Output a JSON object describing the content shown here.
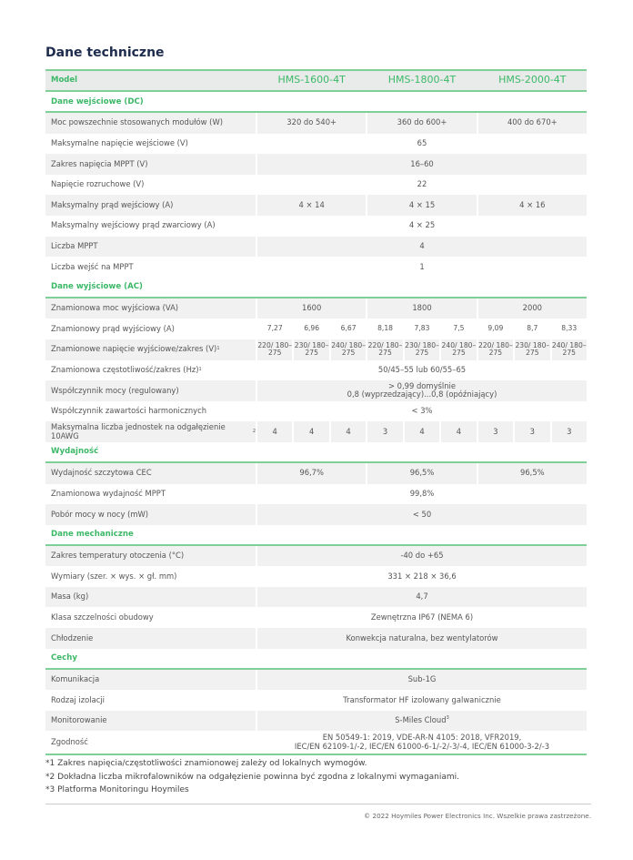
{
  "title": "Dane techniczne",
  "header": {
    "label": "Model",
    "models": [
      "HMS-1600-4T",
      "HMS-1800-4T",
      "HMS-2000-4T"
    ]
  },
  "accent_color": "#3cb868",
  "sections": [
    {
      "title": "Dane wejściowe (DC)",
      "rows": [
        {
          "label": "Moc powszechnie stosowanych modułów (W)",
          "cells": [
            {
              "v": "320 do 540+",
              "span": 3
            },
            {
              "v": "360 do 600+",
              "span": 3
            },
            {
              "v": "400 do 670+",
              "span": 3
            }
          ]
        },
        {
          "label": "Maksymalne napięcie wejściowe (V)",
          "cells": [
            {
              "v": "65",
              "span": 9
            }
          ]
        },
        {
          "label": "Zakres napięcia MPPT (V)",
          "cells": [
            {
              "v": "16–60",
              "span": 9
            }
          ]
        },
        {
          "label": "Napięcie rozruchowe (V)",
          "cells": [
            {
              "v": "22",
              "span": 9
            }
          ]
        },
        {
          "label": "Maksymalny prąd wejściowy (A)",
          "cells": [
            {
              "v": "4 × 14",
              "span": 3
            },
            {
              "v": "4 × 15",
              "span": 3
            },
            {
              "v": "4 × 16",
              "span": 3
            }
          ]
        },
        {
          "label": "Maksymalny wejściowy prąd zwarciowy (A)",
          "cells": [
            {
              "v": "4 × 25",
              "span": 9
            }
          ]
        },
        {
          "label": "Liczba MPPT",
          "cells": [
            {
              "v": "4",
              "span": 9
            }
          ]
        },
        {
          "label": "Liczba wejść na MPPT",
          "cells": [
            {
              "v": "1",
              "span": 9
            }
          ]
        }
      ]
    },
    {
      "title": "Dane wyjściowe (AC)",
      "rows": [
        {
          "label": "Znamionowa moc wyjściowa (VA)",
          "cells": [
            {
              "v": "1600",
              "span": 3
            },
            {
              "v": "1800",
              "span": 3
            },
            {
              "v": "2000",
              "span": 3
            }
          ]
        },
        {
          "label": "Znamionowy prąd wyjściowy (A)",
          "small": true,
          "cells": [
            {
              "v": "7,27",
              "span": 1
            },
            {
              "v": "6,96",
              "span": 1
            },
            {
              "v": "6,67",
              "span": 1
            },
            {
              "v": "8,18",
              "span": 1
            },
            {
              "v": "7,83",
              "span": 1
            },
            {
              "v": "7,5",
              "span": 1
            },
            {
              "v": "9,09",
              "span": 1
            },
            {
              "v": "8,7",
              "span": 1
            },
            {
              "v": "8,33",
              "span": 1
            }
          ]
        },
        {
          "label": "Znamionowe napięcie wyjściowe/zakres (V)",
          "sup": "1",
          "small": true,
          "cells": [
            {
              "v": "220/ 180–275",
              "span": 1
            },
            {
              "v": "230/ 180–275",
              "span": 1
            },
            {
              "v": "240/ 180–275",
              "span": 1
            },
            {
              "v": "220/ 180–275",
              "span": 1
            },
            {
              "v": "230/ 180–275",
              "span": 1
            },
            {
              "v": "240/ 180–275",
              "span": 1
            },
            {
              "v": "220/ 180–275",
              "span": 1
            },
            {
              "v": "230/ 180–275",
              "span": 1
            },
            {
              "v": "240/ 180–275",
              "span": 1
            }
          ]
        },
        {
          "label": "Znamionowa częstotliwość/zakres (Hz)",
          "sup": "1",
          "cells": [
            {
              "v": "50/45–55 lub 60/55–65",
              "span": 9
            }
          ]
        },
        {
          "label": "Współczynnik mocy (regulowany)",
          "cells": [
            {
              "v": "> 0,99 domyślnie",
              "v2": "0,8 (wyprzedzający)...0,8 (opóźniający)",
              "span": 9
            }
          ]
        },
        {
          "label": "Współczynnik zawartości harmonicznych",
          "cells": [
            {
              "v": "< 3%",
              "span": 9
            }
          ]
        },
        {
          "label": "Maksymalna liczba jednostek na odgałęzienie 10AWG",
          "sup": "2",
          "cells": [
            {
              "v": "4",
              "span": 1
            },
            {
              "v": "4",
              "span": 1
            },
            {
              "v": "4",
              "span": 1
            },
            {
              "v": "3",
              "span": 1
            },
            {
              "v": "4",
              "span": 1
            },
            {
              "v": "4",
              "span": 1
            },
            {
              "v": "3",
              "span": 1
            },
            {
              "v": "3",
              "span": 1
            },
            {
              "v": "3",
              "span": 1
            }
          ]
        }
      ]
    },
    {
      "title": "Wydajność",
      "rows": [
        {
          "label": "Wydajność szczytowa CEC",
          "cells": [
            {
              "v": "96,7%",
              "span": 3
            },
            {
              "v": "96,5%",
              "span": 3
            },
            {
              "v": "96,5%",
              "span": 3
            }
          ]
        },
        {
          "label": "Znamionowa wydajność MPPT",
          "cells": [
            {
              "v": "99,8%",
              "span": 9
            }
          ]
        },
        {
          "label": "Pobór mocy w nocy (mW)",
          "cells": [
            {
              "v": "< 50",
              "span": 9
            }
          ]
        }
      ]
    },
    {
      "title": "Dane mechaniczne",
      "rows": [
        {
          "label": "Zakres temperatury otoczenia (°C)",
          "cells": [
            {
              "v": "-40 do +65",
              "span": 9
            }
          ]
        },
        {
          "label": "Wymiary (szer. × wys. × gł. mm)",
          "cells": [
            {
              "v": "331 × 218 × 36,6",
              "span": 9
            }
          ]
        },
        {
          "label": "Masa (kg)",
          "cells": [
            {
              "v": "4,7",
              "span": 9
            }
          ]
        },
        {
          "label": "Klasa szczelności obudowy",
          "cells": [
            {
              "v": "Zewnętrzna IP67 (NEMA 6)",
              "span": 9
            }
          ]
        },
        {
          "label": "Chłodzenie",
          "cells": [
            {
              "v": "Konwekcja naturalna, bez wentylatorów",
              "span": 9
            }
          ]
        }
      ]
    },
    {
      "title": "Cechy",
      "rows": [
        {
          "label": "Komunikacja",
          "cells": [
            {
              "v": "Sub-1G",
              "span": 9
            }
          ]
        },
        {
          "label": "Rodzaj izolacji",
          "cells": [
            {
              "v": "Transformator HF izolowany galwanicznie",
              "span": 9
            }
          ]
        },
        {
          "label": "Monitorowanie",
          "cells": [
            {
              "v": "S-Miles Cloud",
              "sup": "3",
              "span": 9
            }
          ]
        },
        {
          "label": "Zgodność",
          "tall": true,
          "cells": [
            {
              "v": "EN 50549-1: 2019, VDE-AR-N 4105: 2018, VFR2019,",
              "v2": "IEC/EN 62109-1/-2, IEC/EN 61000-6-1/-2/-3/-4, IEC/EN 61000-3-2/-3",
              "span": 9
            }
          ]
        }
      ]
    }
  ],
  "footnotes": [
    "*1 Zakres napięcia/częstotliwości znamionowej zależy od lokalnych wymogów.",
    "*2 Dokładna liczba mikrofalowników na odgałęzienie powinna być zgodna z lokalnymi wymaganiami.",
    "*3 Platforma Monitoringu Hoymiles"
  ],
  "copyright": "© 2022 Hoymiles Power Electronics Inc. Wszelkie prawa zastrzeżone."
}
